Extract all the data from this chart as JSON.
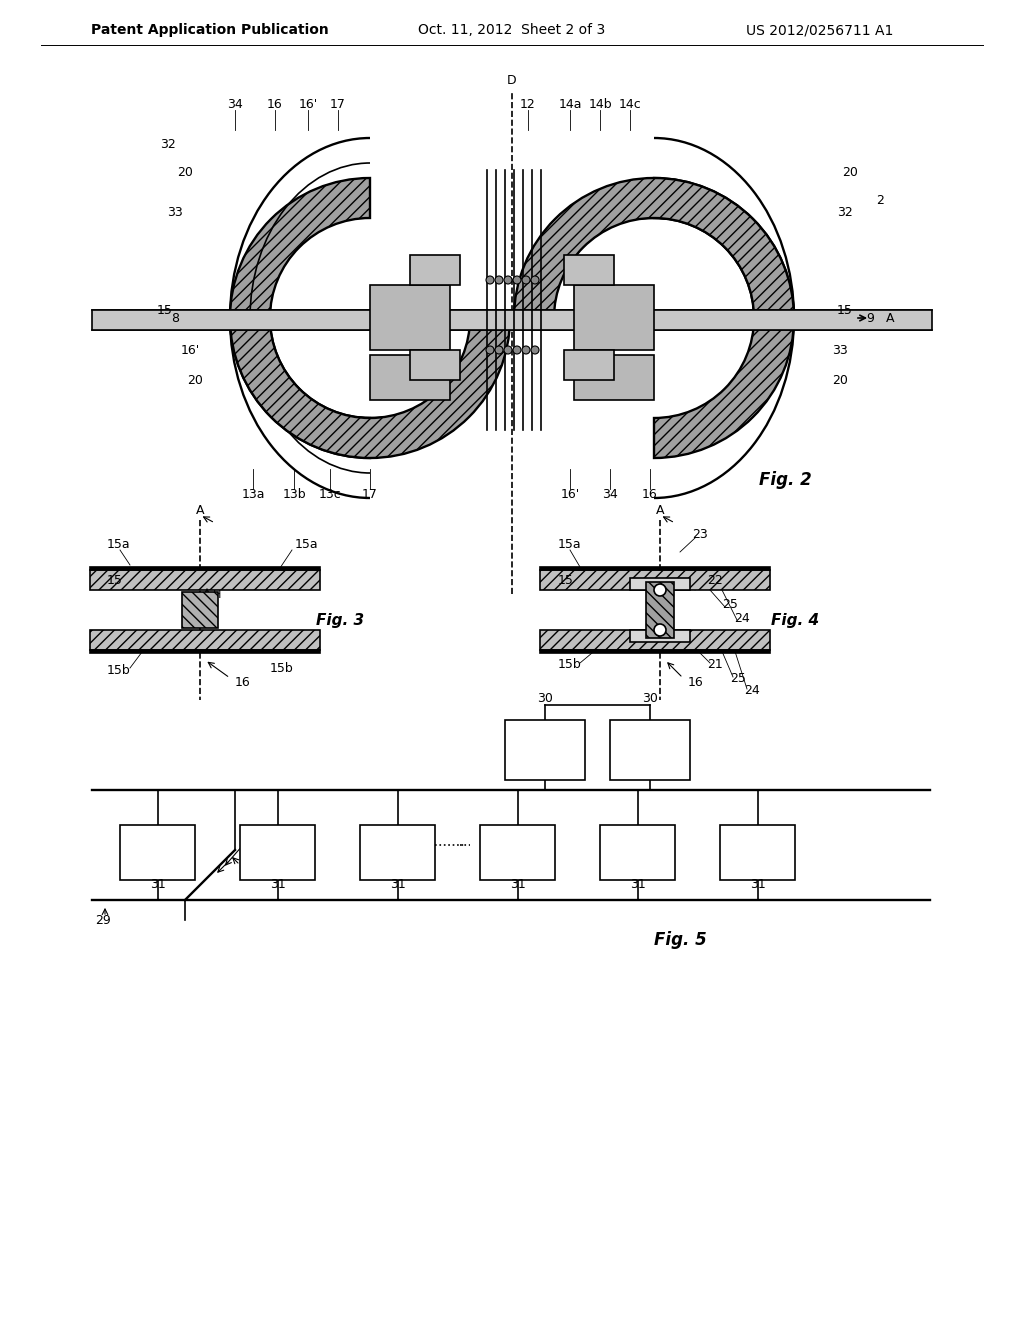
{
  "background_color": "#ffffff",
  "header_left": "Patent Application Publication",
  "header_center": "Oct. 11, 2012  Sheet 2 of 3",
  "header_right": "US 2012/0256711 A1",
  "fig2_label": "Fig. 2",
  "fig3_label": "Fig. 3",
  "fig4_label": "Fig. 4",
  "fig5_label": "Fig. 5",
  "line_color": "#000000",
  "fill_light": "#d0d0d0",
  "fill_medium": "#b0b0b0",
  "fill_dark": "#808080"
}
